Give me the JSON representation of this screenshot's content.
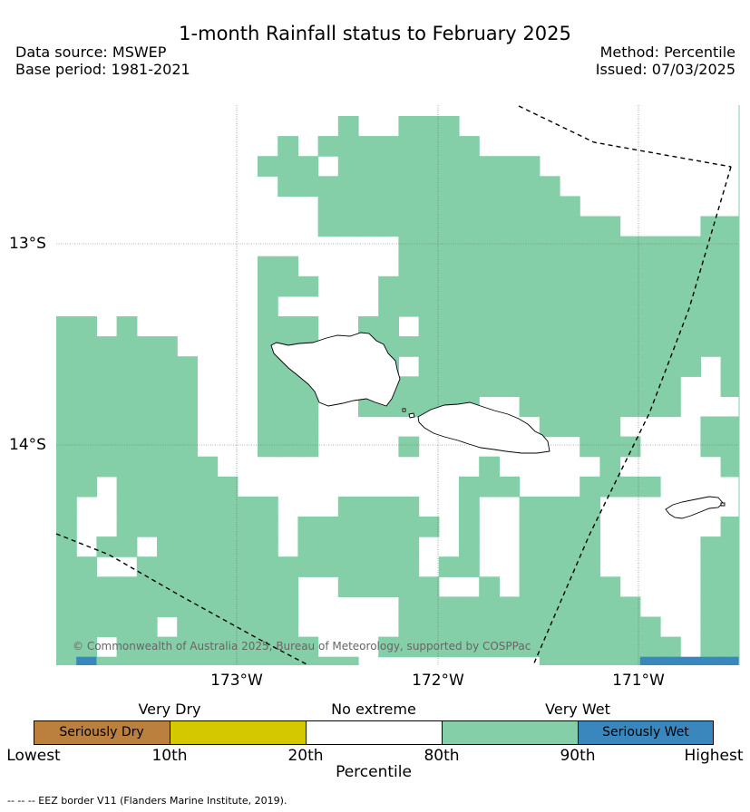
{
  "title": "1-month Rainfall status to February 2025",
  "meta_left": {
    "source": "Data source: MSWEP",
    "base": "Base period: 1981-2021"
  },
  "meta_right": {
    "method": "Method: Percentile",
    "issued": "Issued: 07/03/2025"
  },
  "axes": {
    "lat_labels": [
      "13°S",
      "14°S"
    ],
    "lon_labels": [
      "173°W",
      "172°W",
      "171°W"
    ]
  },
  "copyright": "© Commonwealth of Australia 2025, Bureau of Meteorology, supported by COSPPac",
  "legend": {
    "categories": [
      "Very Dry",
      "No extreme",
      "Very Wet"
    ],
    "segments": [
      {
        "label": "Seriously Dry",
        "color": "#bb7f3e"
      },
      {
        "label": "",
        "color": "#d4c900"
      },
      {
        "label": "",
        "color": "#ffffff"
      },
      {
        "label": "",
        "color": "#84cea8"
      },
      {
        "label": "Seriously Wet",
        "color": "#3a87be"
      }
    ],
    "ticks": [
      "Lowest",
      "10th",
      "20th",
      "80th",
      "90th",
      "Highest"
    ],
    "axis_title": "Percentile"
  },
  "eez_note": "--  --  -- EEZ border V11 (Flanders Marine Institute, 2019).",
  "colors": {
    "very_wet": "#84cea8",
    "seriously_wet": "#3a87be",
    "no_extreme": "#ffffff"
  }
}
